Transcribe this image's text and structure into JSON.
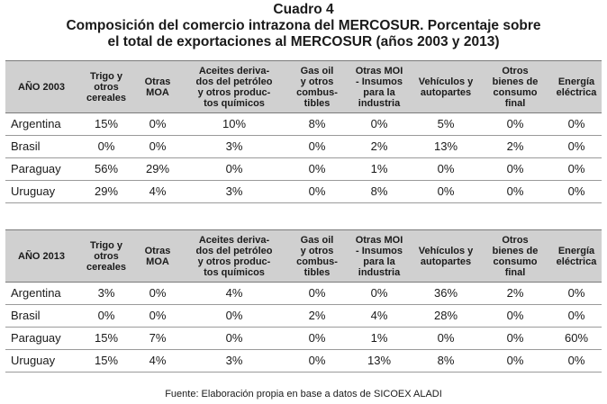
{
  "title": {
    "line1": "Cuadro 4",
    "line2": "Composición del comercio intrazona del MERCOSUR. Porcentaje sobre",
    "line3": "el total de exportaciones al MERCOSUR (años 2003 y 2013)"
  },
  "columns": [
    "Trigo y otros cereales",
    "Otras MOA",
    "Aceites derivados del petróleo y otros productos químicos",
    "Gas oil y otros combustibles",
    "Otras MOI - Insumos para la industria",
    "Vehículos y autopartes",
    "Otros bienes de consumo final",
    "Energía eléctrica"
  ],
  "columns_display": [
    [
      "Trigo y",
      "otros",
      "cereales"
    ],
    [
      "Otras",
      "MOA"
    ],
    [
      "Aceites deriva-",
      "dos del petróleo",
      "y otros produc-",
      "tos químicos"
    ],
    [
      "Gas oil",
      "y otros",
      "combus-",
      "tibles"
    ],
    [
      "Otras MOI",
      "- Insumos",
      "para la",
      "industria"
    ],
    [
      "Vehículos y",
      "autopartes"
    ],
    [
      "Otros",
      "bienes de",
      "consumo",
      "final"
    ],
    [
      "Energía",
      "eléctrica"
    ]
  ],
  "tables": [
    {
      "year_label": "AÑO 2003",
      "rows": [
        {
          "country": "Argentina",
          "values": [
            "15%",
            "0%",
            "10%",
            "8%",
            "0%",
            "5%",
            "0%",
            "0%"
          ]
        },
        {
          "country": "Brasil",
          "values": [
            "0%",
            "0%",
            "3%",
            "0%",
            "2%",
            "13%",
            "2%",
            "0%"
          ]
        },
        {
          "country": "Paraguay",
          "values": [
            "56%",
            "29%",
            "0%",
            "0%",
            "1%",
            "0%",
            "0%",
            "0%"
          ]
        },
        {
          "country": "Uruguay",
          "values": [
            "29%",
            "4%",
            "3%",
            "0%",
            "8%",
            "0%",
            "0%",
            "0%"
          ]
        }
      ]
    },
    {
      "year_label": "AÑO 2013",
      "rows": [
        {
          "country": "Argentina",
          "values": [
            "3%",
            "0%",
            "4%",
            "0%",
            "0%",
            "36%",
            "2%",
            "0%"
          ]
        },
        {
          "country": "Brasil",
          "values": [
            "0%",
            "0%",
            "0%",
            "2%",
            "4%",
            "28%",
            "0%",
            "0%"
          ]
        },
        {
          "country": "Paraguay",
          "values": [
            "15%",
            "7%",
            "0%",
            "0%",
            "1%",
            "0%",
            "0%",
            "60%"
          ]
        },
        {
          "country": "Uruguay",
          "values": [
            "15%",
            "4%",
            "3%",
            "0%",
            "13%",
            "8%",
            "0%",
            "0%"
          ]
        }
      ]
    }
  ],
  "source": "Fuente: Elaboración propia en base a datos de SICOEX ALADI"
}
